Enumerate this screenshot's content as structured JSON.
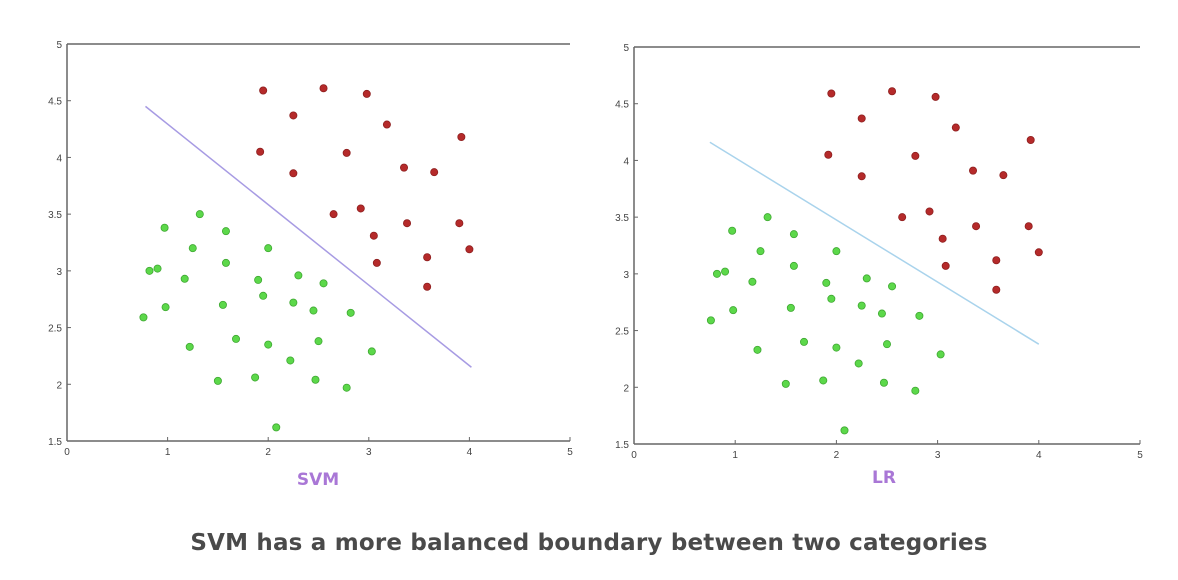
{
  "caption": "SVM has a more balanced boundary between two categories",
  "colors": {
    "green_points": "#5cd84a",
    "red_points": "#b52a2a",
    "svm_line": "#a79be3",
    "lr_line": "#a9d3ec",
    "svm_label": "#a977d6",
    "lr_label": "#a977d6",
    "axis": "#666666"
  },
  "chart_data": [
    {
      "type": "scatter",
      "title": "SVM",
      "xlabel": "",
      "ylabel": "",
      "xlim": [
        0,
        5
      ],
      "ylim": [
        1.5,
        5
      ],
      "x_ticks": [
        "0",
        "1",
        "2",
        "3",
        "4",
        "5"
      ],
      "y_ticks": [
        "1.5",
        "2",
        "2.5",
        "3",
        "3.5",
        "4",
        "4.5",
        "5"
      ],
      "grid": false,
      "series": [
        {
          "color": "#5cd84a",
          "points": [
            [
              0.97,
              3.38
            ],
            [
              1.32,
              3.5
            ],
            [
              1.58,
              3.35
            ],
            [
              0.82,
              3.0
            ],
            [
              0.9,
              3.02
            ],
            [
              1.25,
              3.2
            ],
            [
              1.58,
              3.07
            ],
            [
              2.0,
              3.2
            ],
            [
              1.17,
              2.93
            ],
            [
              0.98,
              2.68
            ],
            [
              0.76,
              2.59
            ],
            [
              1.55,
              2.7
            ],
            [
              1.9,
              2.92
            ],
            [
              1.95,
              2.78
            ],
            [
              2.3,
              2.96
            ],
            [
              2.55,
              2.89
            ],
            [
              2.25,
              2.72
            ],
            [
              2.45,
              2.65
            ],
            [
              2.82,
              2.63
            ],
            [
              1.22,
              2.33
            ],
            [
              1.68,
              2.4
            ],
            [
              2.0,
              2.35
            ],
            [
              2.5,
              2.38
            ],
            [
              3.03,
              2.29
            ],
            [
              2.22,
              2.21
            ],
            [
              1.5,
              2.03
            ],
            [
              1.87,
              2.06
            ],
            [
              2.47,
              2.04
            ],
            [
              2.78,
              1.97
            ],
            [
              2.08,
              1.62
            ]
          ]
        },
        {
          "color": "#b52a2a",
          "points": [
            [
              1.95,
              4.59
            ],
            [
              2.55,
              4.61
            ],
            [
              2.98,
              4.56
            ],
            [
              2.25,
              4.37
            ],
            [
              3.18,
              4.29
            ],
            [
              3.92,
              4.18
            ],
            [
              1.92,
              4.05
            ],
            [
              2.78,
              4.04
            ],
            [
              3.35,
              3.91
            ],
            [
              3.65,
              3.87
            ],
            [
              2.25,
              3.86
            ],
            [
              2.65,
              3.5
            ],
            [
              2.92,
              3.55
            ],
            [
              3.38,
              3.42
            ],
            [
              3.9,
              3.42
            ],
            [
              3.05,
              3.31
            ],
            [
              4.0,
              3.19
            ],
            [
              3.58,
              3.12
            ],
            [
              3.08,
              3.07
            ],
            [
              3.58,
              2.86
            ]
          ]
        }
      ],
      "boundary": [
        [
          0.78,
          4.45
        ],
        [
          4.02,
          2.15
        ]
      ]
    },
    {
      "type": "scatter",
      "title": "LR",
      "xlabel": "",
      "ylabel": "",
      "xlim": [
        0,
        5
      ],
      "ylim": [
        1.5,
        5
      ],
      "x_ticks": [
        "0",
        "1",
        "2",
        "3",
        "4",
        "5"
      ],
      "y_ticks": [
        "1.5",
        "2",
        "2.5",
        "3",
        "3.5",
        "4",
        "4.5",
        "5"
      ],
      "grid": false,
      "series": [
        {
          "color": "#5cd84a",
          "points": [
            [
              0.97,
              3.38
            ],
            [
              1.32,
              3.5
            ],
            [
              1.58,
              3.35
            ],
            [
              0.82,
              3.0
            ],
            [
              0.9,
              3.02
            ],
            [
              1.25,
              3.2
            ],
            [
              1.58,
              3.07
            ],
            [
              2.0,
              3.2
            ],
            [
              1.17,
              2.93
            ],
            [
              0.98,
              2.68
            ],
            [
              0.76,
              2.59
            ],
            [
              1.55,
              2.7
            ],
            [
              1.9,
              2.92
            ],
            [
              1.95,
              2.78
            ],
            [
              2.3,
              2.96
            ],
            [
              2.55,
              2.89
            ],
            [
              2.25,
              2.72
            ],
            [
              2.45,
              2.65
            ],
            [
              2.82,
              2.63
            ],
            [
              1.22,
              2.33
            ],
            [
              1.68,
              2.4
            ],
            [
              2.0,
              2.35
            ],
            [
              2.5,
              2.38
            ],
            [
              3.03,
              2.29
            ],
            [
              2.22,
              2.21
            ],
            [
              1.5,
              2.03
            ],
            [
              1.87,
              2.06
            ],
            [
              2.47,
              2.04
            ],
            [
              2.78,
              1.97
            ],
            [
              2.08,
              1.62
            ]
          ]
        },
        {
          "color": "#b52a2a",
          "points": [
            [
              1.95,
              4.59
            ],
            [
              2.55,
              4.61
            ],
            [
              2.98,
              4.56
            ],
            [
              2.25,
              4.37
            ],
            [
              3.18,
              4.29
            ],
            [
              3.92,
              4.18
            ],
            [
              1.92,
              4.05
            ],
            [
              2.78,
              4.04
            ],
            [
              3.35,
              3.91
            ],
            [
              3.65,
              3.87
            ],
            [
              2.25,
              3.86
            ],
            [
              2.65,
              3.5
            ],
            [
              2.92,
              3.55
            ],
            [
              3.38,
              3.42
            ],
            [
              3.9,
              3.42
            ],
            [
              3.05,
              3.31
            ],
            [
              4.0,
              3.19
            ],
            [
              3.58,
              3.12
            ],
            [
              3.08,
              3.07
            ],
            [
              3.58,
              2.86
            ]
          ]
        }
      ],
      "boundary": [
        [
          0.75,
          4.16
        ],
        [
          4.0,
          2.38
        ]
      ]
    }
  ]
}
